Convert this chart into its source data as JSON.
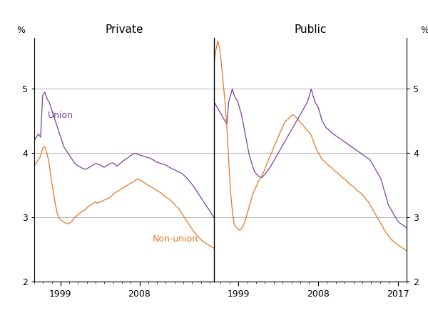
{
  "union_color": "#7B3FA0",
  "nonunion_color": "#E87722",
  "background_color": "#FFFFFF",
  "grid_color": "#AAAAAA",
  "ylim": [
    2.0,
    5.8
  ],
  "yticks": [
    2,
    3,
    4,
    5
  ],
  "private_label": "Private",
  "public_label": "Public",
  "union_label": "Union",
  "nonunion_label": "Non-union",
  "ylabel": "%",
  "private_xlim": [
    1996.0,
    2016.5
  ],
  "public_xlim": [
    1996.25,
    2018.0
  ],
  "private_xticks": [
    1999,
    2008
  ],
  "public_xticks": [
    1999,
    2008,
    2017
  ],
  "private_union": [
    4.2,
    4.25,
    4.3,
    4.25,
    4.9,
    4.95,
    4.85,
    4.8,
    4.7,
    4.6,
    4.5,
    4.4,
    4.3,
    4.2,
    4.1,
    4.05,
    4.0,
    3.95,
    3.9,
    3.85,
    3.82,
    3.8,
    3.78,
    3.76,
    3.75,
    3.76,
    3.78,
    3.8,
    3.82,
    3.84,
    3.83,
    3.82,
    3.8,
    3.78,
    3.8,
    3.82,
    3.84,
    3.85,
    3.83,
    3.8,
    3.82,
    3.85,
    3.88,
    3.9,
    3.92,
    3.95,
    3.97,
    3.99,
    4.0,
    3.98,
    3.97,
    3.96,
    3.95,
    3.94,
    3.93,
    3.92,
    3.9,
    3.88,
    3.86,
    3.85,
    3.84,
    3.83,
    3.82,
    3.8,
    3.78,
    3.76,
    3.75,
    3.73,
    3.71,
    3.7,
    3.68,
    3.65,
    3.62,
    3.58,
    3.54,
    3.5,
    3.45,
    3.4,
    3.35,
    3.3,
    3.25,
    3.2,
    3.15,
    3.1,
    3.05,
    3.0
  ],
  "private_nonunion": [
    3.8,
    3.85,
    3.9,
    3.95,
    4.08,
    4.1,
    4.0,
    3.85,
    3.6,
    3.4,
    3.2,
    3.05,
    2.98,
    2.95,
    2.93,
    2.91,
    2.9,
    2.92,
    2.95,
    3.0,
    3.02,
    3.05,
    3.08,
    3.1,
    3.12,
    3.15,
    3.18,
    3.2,
    3.22,
    3.24,
    3.22,
    3.24,
    3.25,
    3.27,
    3.28,
    3.3,
    3.32,
    3.35,
    3.38,
    3.4,
    3.42,
    3.44,
    3.46,
    3.48,
    3.5,
    3.52,
    3.54,
    3.56,
    3.58,
    3.6,
    3.58,
    3.56,
    3.54,
    3.52,
    3.5,
    3.48,
    3.46,
    3.44,
    3.42,
    3.4,
    3.38,
    3.35,
    3.32,
    3.3,
    3.28,
    3.25,
    3.22,
    3.18,
    3.15,
    3.1,
    3.05,
    3.0,
    2.95,
    2.9,
    2.85,
    2.8,
    2.76,
    2.72,
    2.68,
    2.65,
    2.62,
    2.6,
    2.58,
    2.56,
    2.54,
    2.52
  ],
  "public_union": [
    4.8,
    4.75,
    4.7,
    4.65,
    4.6,
    4.55,
    4.5,
    4.45,
    4.8,
    4.9,
    5.0,
    4.9,
    4.85,
    4.8,
    4.7,
    4.6,
    4.45,
    4.3,
    4.15,
    4.0,
    3.9,
    3.8,
    3.72,
    3.68,
    3.65,
    3.63,
    3.62,
    3.65,
    3.68,
    3.72,
    3.76,
    3.8,
    3.85,
    3.9,
    3.95,
    4.0,
    4.05,
    4.1,
    4.15,
    4.2,
    4.25,
    4.3,
    4.35,
    4.4,
    4.45,
    4.5,
    4.55,
    4.6,
    4.65,
    4.7,
    4.75,
    4.8,
    4.9,
    5.0,
    4.9,
    4.8,
    4.75,
    4.7,
    4.6,
    4.5,
    4.45,
    4.4,
    4.38,
    4.35,
    4.32,
    4.3,
    4.28,
    4.26,
    4.24,
    4.22,
    4.2,
    4.18,
    4.16,
    4.14,
    4.12,
    4.1,
    4.08,
    4.06,
    4.04,
    4.02,
    4.0,
    3.98,
    3.96,
    3.94,
    3.92,
    3.9,
    3.85,
    3.8,
    3.75,
    3.7,
    3.65,
    3.6,
    3.5,
    3.4,
    3.3,
    3.2,
    3.15,
    3.1,
    3.05,
    3.0,
    2.95,
    2.92,
    2.9,
    2.88,
    2.86,
    2.84
  ],
  "public_nonunion": [
    5.4,
    5.6,
    5.75,
    5.65,
    5.4,
    5.1,
    4.8,
    4.4,
    3.9,
    3.4,
    3.1,
    2.9,
    2.85,
    2.82,
    2.8,
    2.82,
    2.88,
    2.95,
    3.05,
    3.15,
    3.25,
    3.35,
    3.42,
    3.48,
    3.55,
    3.6,
    3.65,
    3.7,
    3.78,
    3.85,
    3.92,
    3.98,
    4.05,
    4.12,
    4.18,
    4.25,
    4.32,
    4.38,
    4.45,
    4.5,
    4.52,
    4.55,
    4.58,
    4.6,
    4.58,
    4.55,
    4.52,
    4.48,
    4.45,
    4.42,
    4.38,
    4.35,
    4.32,
    4.28,
    4.2,
    4.12,
    4.05,
    4.0,
    3.95,
    3.9,
    3.88,
    3.85,
    3.82,
    3.8,
    3.78,
    3.75,
    3.72,
    3.7,
    3.68,
    3.65,
    3.62,
    3.6,
    3.58,
    3.55,
    3.52,
    3.5,
    3.48,
    3.45,
    3.42,
    3.4,
    3.38,
    3.35,
    3.32,
    3.28,
    3.25,
    3.2,
    3.15,
    3.1,
    3.05,
    3.0,
    2.95,
    2.9,
    2.85,
    2.8,
    2.76,
    2.72,
    2.68,
    2.65,
    2.62,
    2.6,
    2.58,
    2.56,
    2.54,
    2.52,
    2.5,
    2.48
  ]
}
